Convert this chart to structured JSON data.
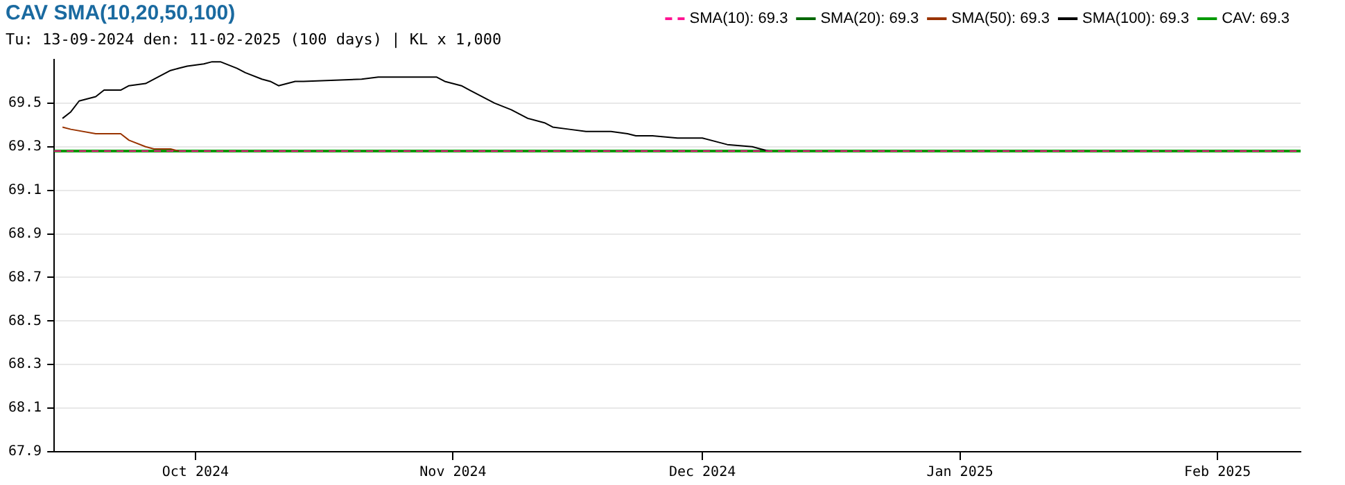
{
  "chart_data": {
    "type": "line",
    "title": "CAV SMA(10,20,50,100)",
    "subtitle": "Tu: 13-09-2024 den: 11-02-2025 (100 days) | KL x 1,000",
    "xlim": [
      "2024-09-14",
      "2025-02-11"
    ],
    "xticks": [
      {
        "value": "2024-10-01",
        "label": "Oct 2024"
      },
      {
        "value": "2024-11-01",
        "label": "Nov 2024"
      },
      {
        "value": "2024-12-01",
        "label": "Dec 2024"
      },
      {
        "value": "2025-01-01",
        "label": "Jan 2025"
      },
      {
        "value": "2025-02-01",
        "label": "Feb 2025"
      }
    ],
    "ylim": [
      67.9,
      69.7
    ],
    "yticks": [
      67.9,
      68.1,
      68.3,
      68.5,
      68.7,
      68.9,
      69.1,
      69.3,
      69.5
    ],
    "grid": "y",
    "legend": "top right",
    "marker": "none",
    "series": [
      {
        "name": "SMA(10): 69.3",
        "color": "#ff1493",
        "line_style": "dashed",
        "x": [
          "2024-09-14",
          "2025-02-11"
        ],
        "values": [
          69.28,
          69.28
        ]
      },
      {
        "name": "SMA(20): 69.3",
        "color": "#006600"
      },
      {
        "name": "SMA(50): 69.3",
        "color": "#993300",
        "x": [
          "2024-09-15",
          "2024-09-16",
          "2024-09-19",
          "2024-09-22",
          "2024-09-23",
          "2024-09-25",
          "2024-09-26",
          "2024-09-28",
          "2024-09-29"
        ],
        "values": [
          69.39,
          69.38,
          69.36,
          69.36,
          69.33,
          69.3,
          69.29,
          69.29,
          69.28
        ]
      },
      {
        "name": "SMA(100): 69.3",
        "color": "#000000",
        "x": [
          "2024-09-15",
          "2024-09-16",
          "2024-09-17",
          "2024-09-19",
          "2024-09-20",
          "2024-09-22",
          "2024-09-23",
          "2024-09-25",
          "2024-09-28",
          "2024-09-29",
          "2024-09-30",
          "2024-10-02",
          "2024-10-03",
          "2024-10-04",
          "2024-10-06",
          "2024-10-07",
          "2024-10-09",
          "2024-10-10",
          "2024-10-11",
          "2024-10-13",
          "2024-10-14",
          "2024-10-21",
          "2024-10-23",
          "2024-10-30",
          "2024-10-31",
          "2024-11-02",
          "2024-11-03",
          "2024-11-06",
          "2024-11-08",
          "2024-11-09",
          "2024-11-10",
          "2024-11-12",
          "2024-11-13",
          "2024-11-15",
          "2024-11-17",
          "2024-11-20",
          "2024-11-22",
          "2024-11-23",
          "2024-11-25",
          "2024-11-28",
          "2024-12-01",
          "2024-12-04",
          "2024-12-07",
          "2024-12-08",
          "2024-12-09"
        ],
        "values": [
          69.43,
          69.46,
          69.51,
          69.53,
          69.56,
          69.56,
          69.58,
          69.59,
          69.65,
          69.66,
          69.67,
          69.68,
          69.69,
          69.69,
          69.66,
          69.64,
          69.61,
          69.6,
          69.58,
          69.6,
          69.6,
          69.61,
          69.62,
          69.62,
          69.6,
          69.58,
          69.56,
          69.5,
          69.47,
          69.45,
          69.43,
          69.41,
          69.39,
          69.38,
          69.37,
          69.37,
          69.36,
          69.35,
          69.35,
          69.34,
          69.34,
          69.31,
          69.3,
          69.29,
          69.28
        ]
      },
      {
        "name": "CAV: 69.3",
        "color": "#009900",
        "x": [
          "2024-09-14",
          "2025-02-11"
        ],
        "values": [
          69.28,
          69.28
        ]
      }
    ]
  }
}
